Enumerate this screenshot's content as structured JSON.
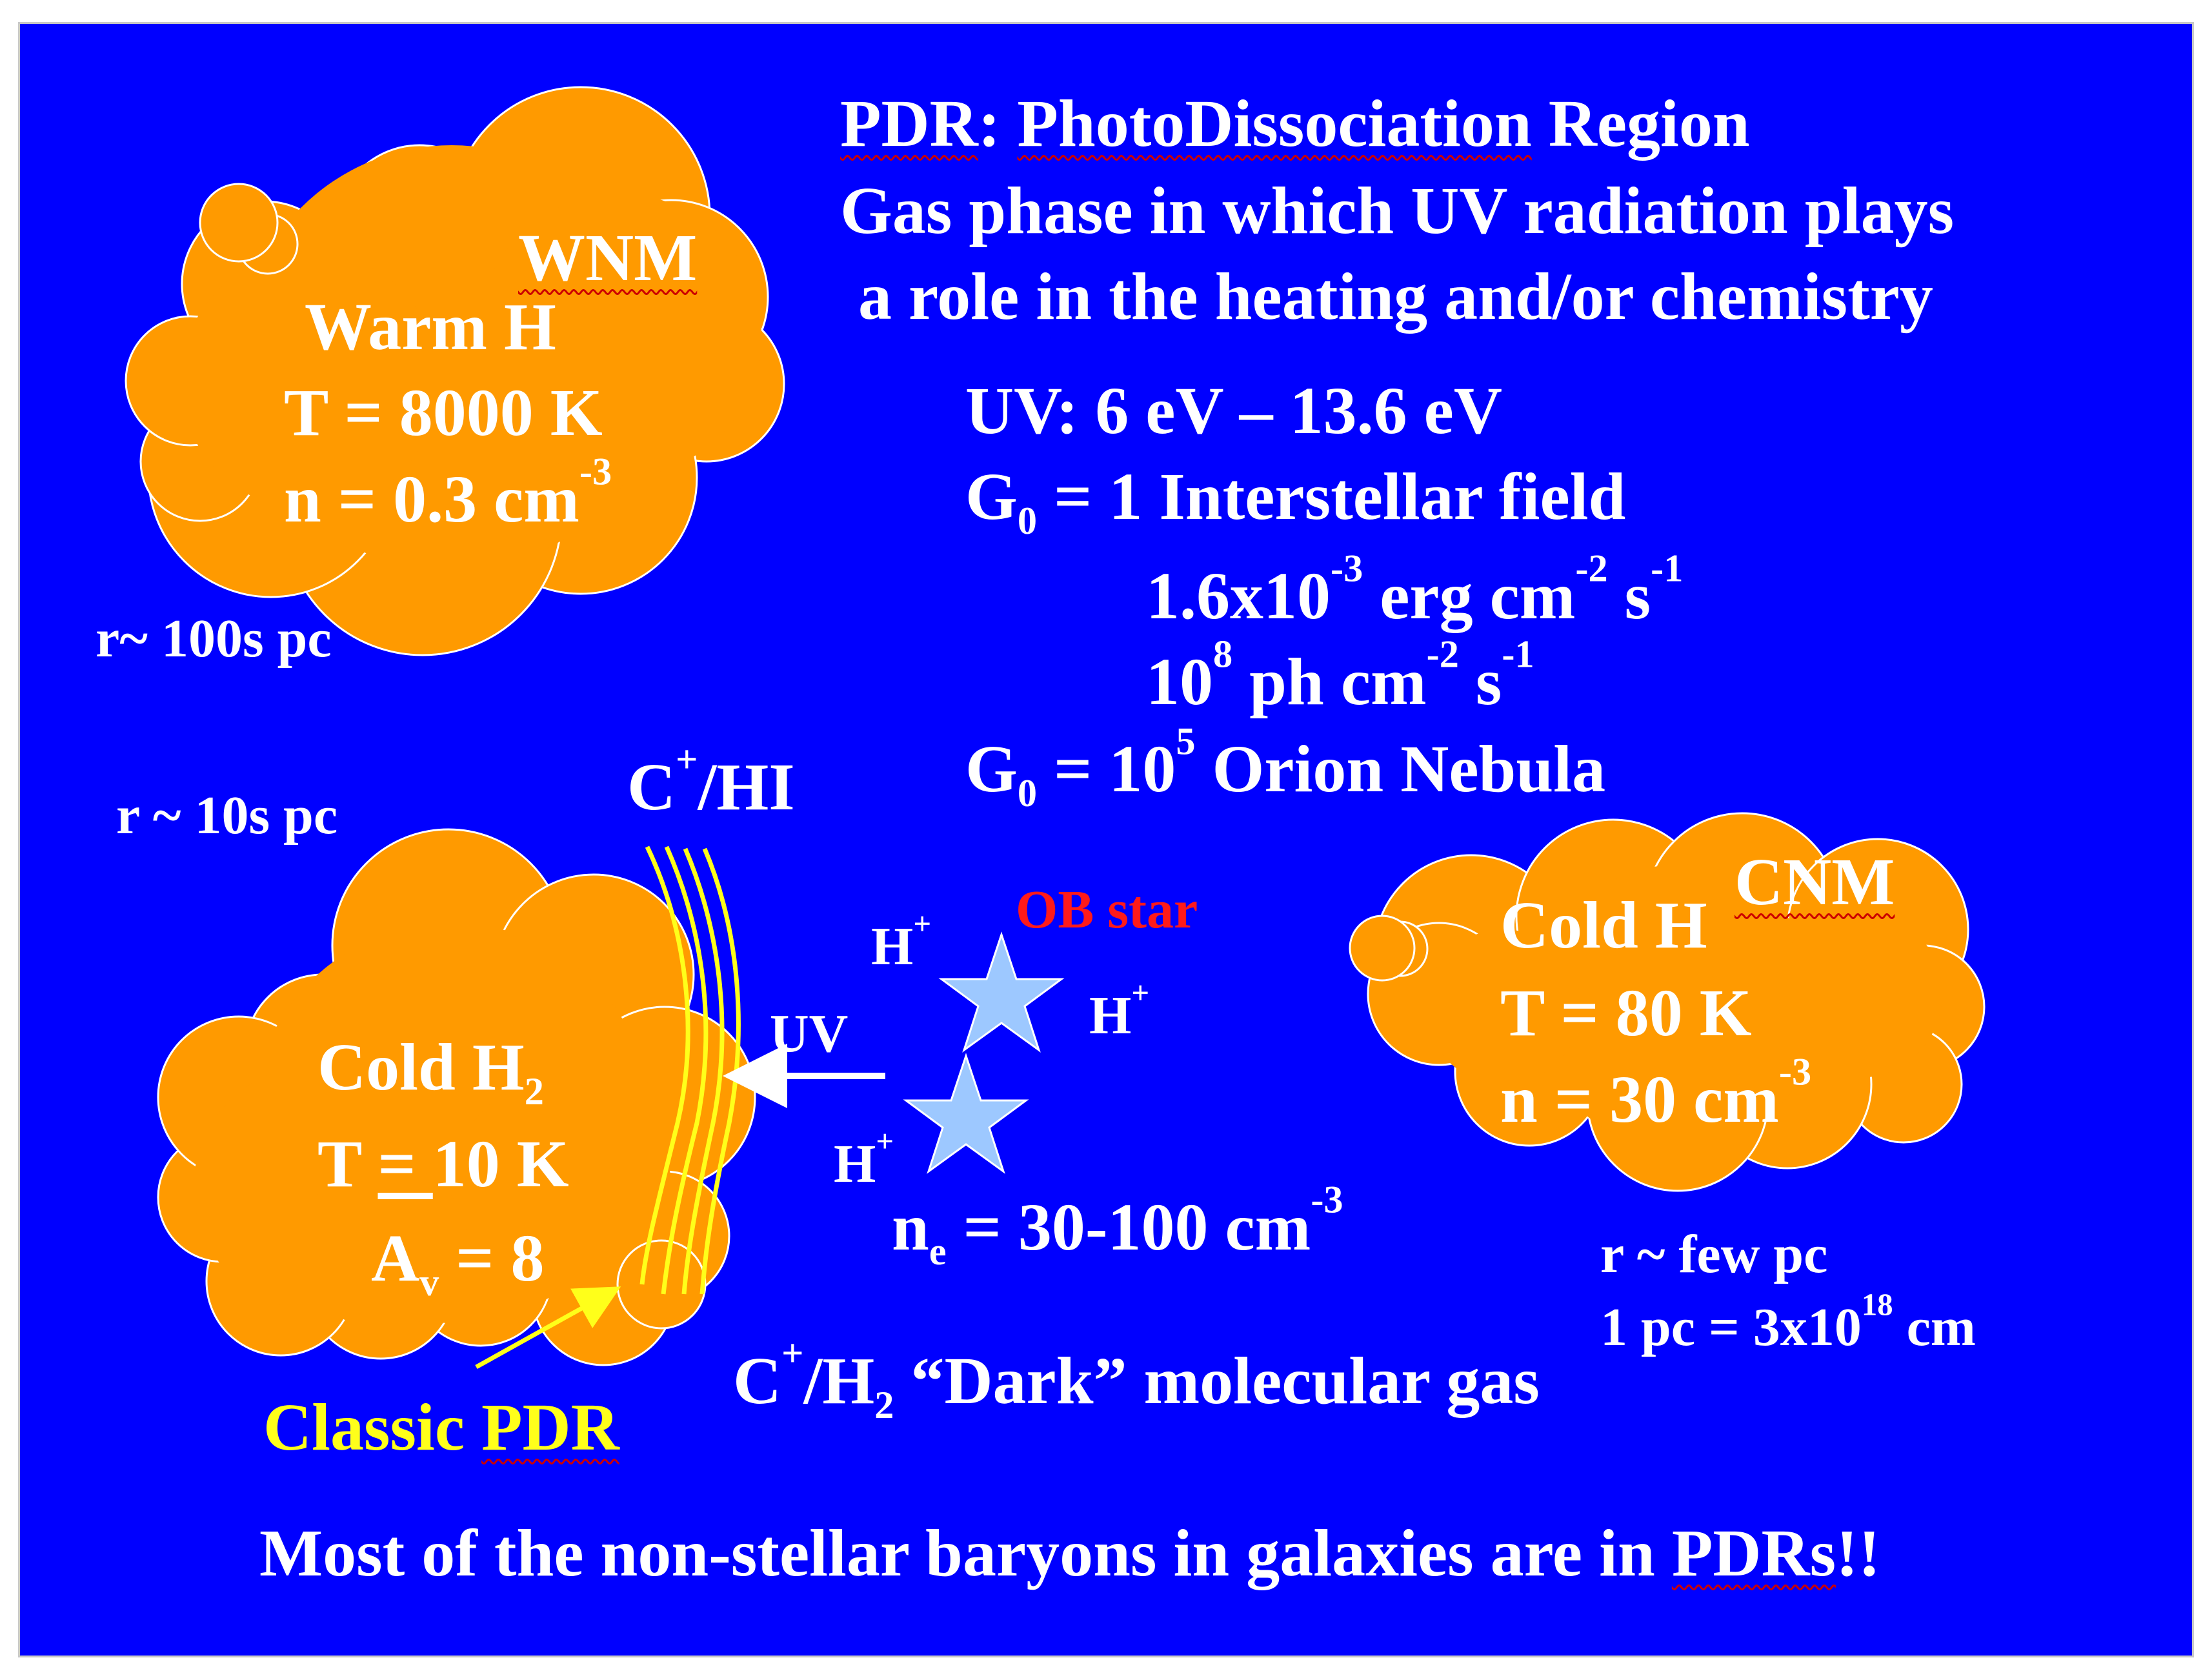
{
  "title": {
    "abbr": "PDR",
    "colon": ": ",
    "photo": "PhotoDissociation",
    "region": " Region",
    "line2": "Gas phase in which UV radiation plays",
    "line3": "a role in the heating and/or chemistry"
  },
  "uv_info": {
    "range": "UV:  6 eV – 13.6 eV",
    "g0_sym": "G",
    "g0_sub": "0",
    "g0_1_rest": " = 1   Interstellar field",
    "flux_1_base": "1.6x10",
    "flux_1_exp": "-3",
    "flux_1_unit": "  erg cm",
    "flux_1_unit_exp": "-2",
    "flux_1_s": " s",
    "flux_1_s_exp": "-1",
    "flux_2_base": "10",
    "flux_2_exp": "8",
    "flux_2_unit": " ph cm",
    "flux_2_unit_exp": "-2",
    "flux_2_s": " s",
    "flux_2_s_exp": "-1",
    "g0_2_eq": " = 10",
    "g0_2_exp": "5",
    "g0_2_rest": "   Orion Nebula"
  },
  "wnm_cloud": {
    "tag": "WNM",
    "name": "Warm  H",
    "temp": "T = 8000 K",
    "dens_base": "n = 0.3 cm",
    "dens_exp": "-3",
    "size": "r~ 100s pc"
  },
  "cold_h2_cloud": {
    "size": "r ~ 10s pc",
    "name_base": "Cold   H",
    "name_sub": "2",
    "temp_t": "T ",
    "temp_eq": "= ",
    "temp_val": "10 K",
    "av_base": "A",
    "av_sub": "v",
    "av_val": " = 8",
    "edge_base": "C",
    "edge_sup": "+",
    "edge_rest": "/HI",
    "pdr_label_a": "Classic ",
    "pdr_label_b": "PDR"
  },
  "center": {
    "ob_star": "OB star",
    "h_plus_base": "H",
    "h_plus_sup": "+",
    "uv_arrow_label": "UV",
    "ne_base": "n",
    "ne_sub": "e",
    "ne_val": " = 30-100 cm",
    "ne_exp": "-3",
    "dark_c": "C",
    "dark_c_sup": "+",
    "dark_h": "/H",
    "dark_h_sub": "2",
    "dark_rest": "  “Dark”  molecular gas"
  },
  "cnm_cloud": {
    "tag": "CNM",
    "name": "Cold  H",
    "temp": "T = 80 K",
    "dens_base": "n = 30 cm",
    "dens_exp": "-3",
    "size": "r ~ few pc",
    "pc_base": "1 pc = 3x10",
    "pc_exp": "18",
    "pc_unit": " cm"
  },
  "footer": {
    "a": "Most of the non-stellar baryons in galaxies are in ",
    "b": "PDRs",
    "c": "!!"
  },
  "colors": {
    "background": "#0000ff",
    "cloud_fill": "#ff9a00",
    "text": "#ffffff",
    "highlight": "#ffff1a",
    "star": "#9dc8ff",
    "ob_label": "#ff1a1a"
  },
  "icons": {
    "cloud": "cloud-shape",
    "star": "star-icon",
    "arrow": "arrow-left-icon"
  }
}
